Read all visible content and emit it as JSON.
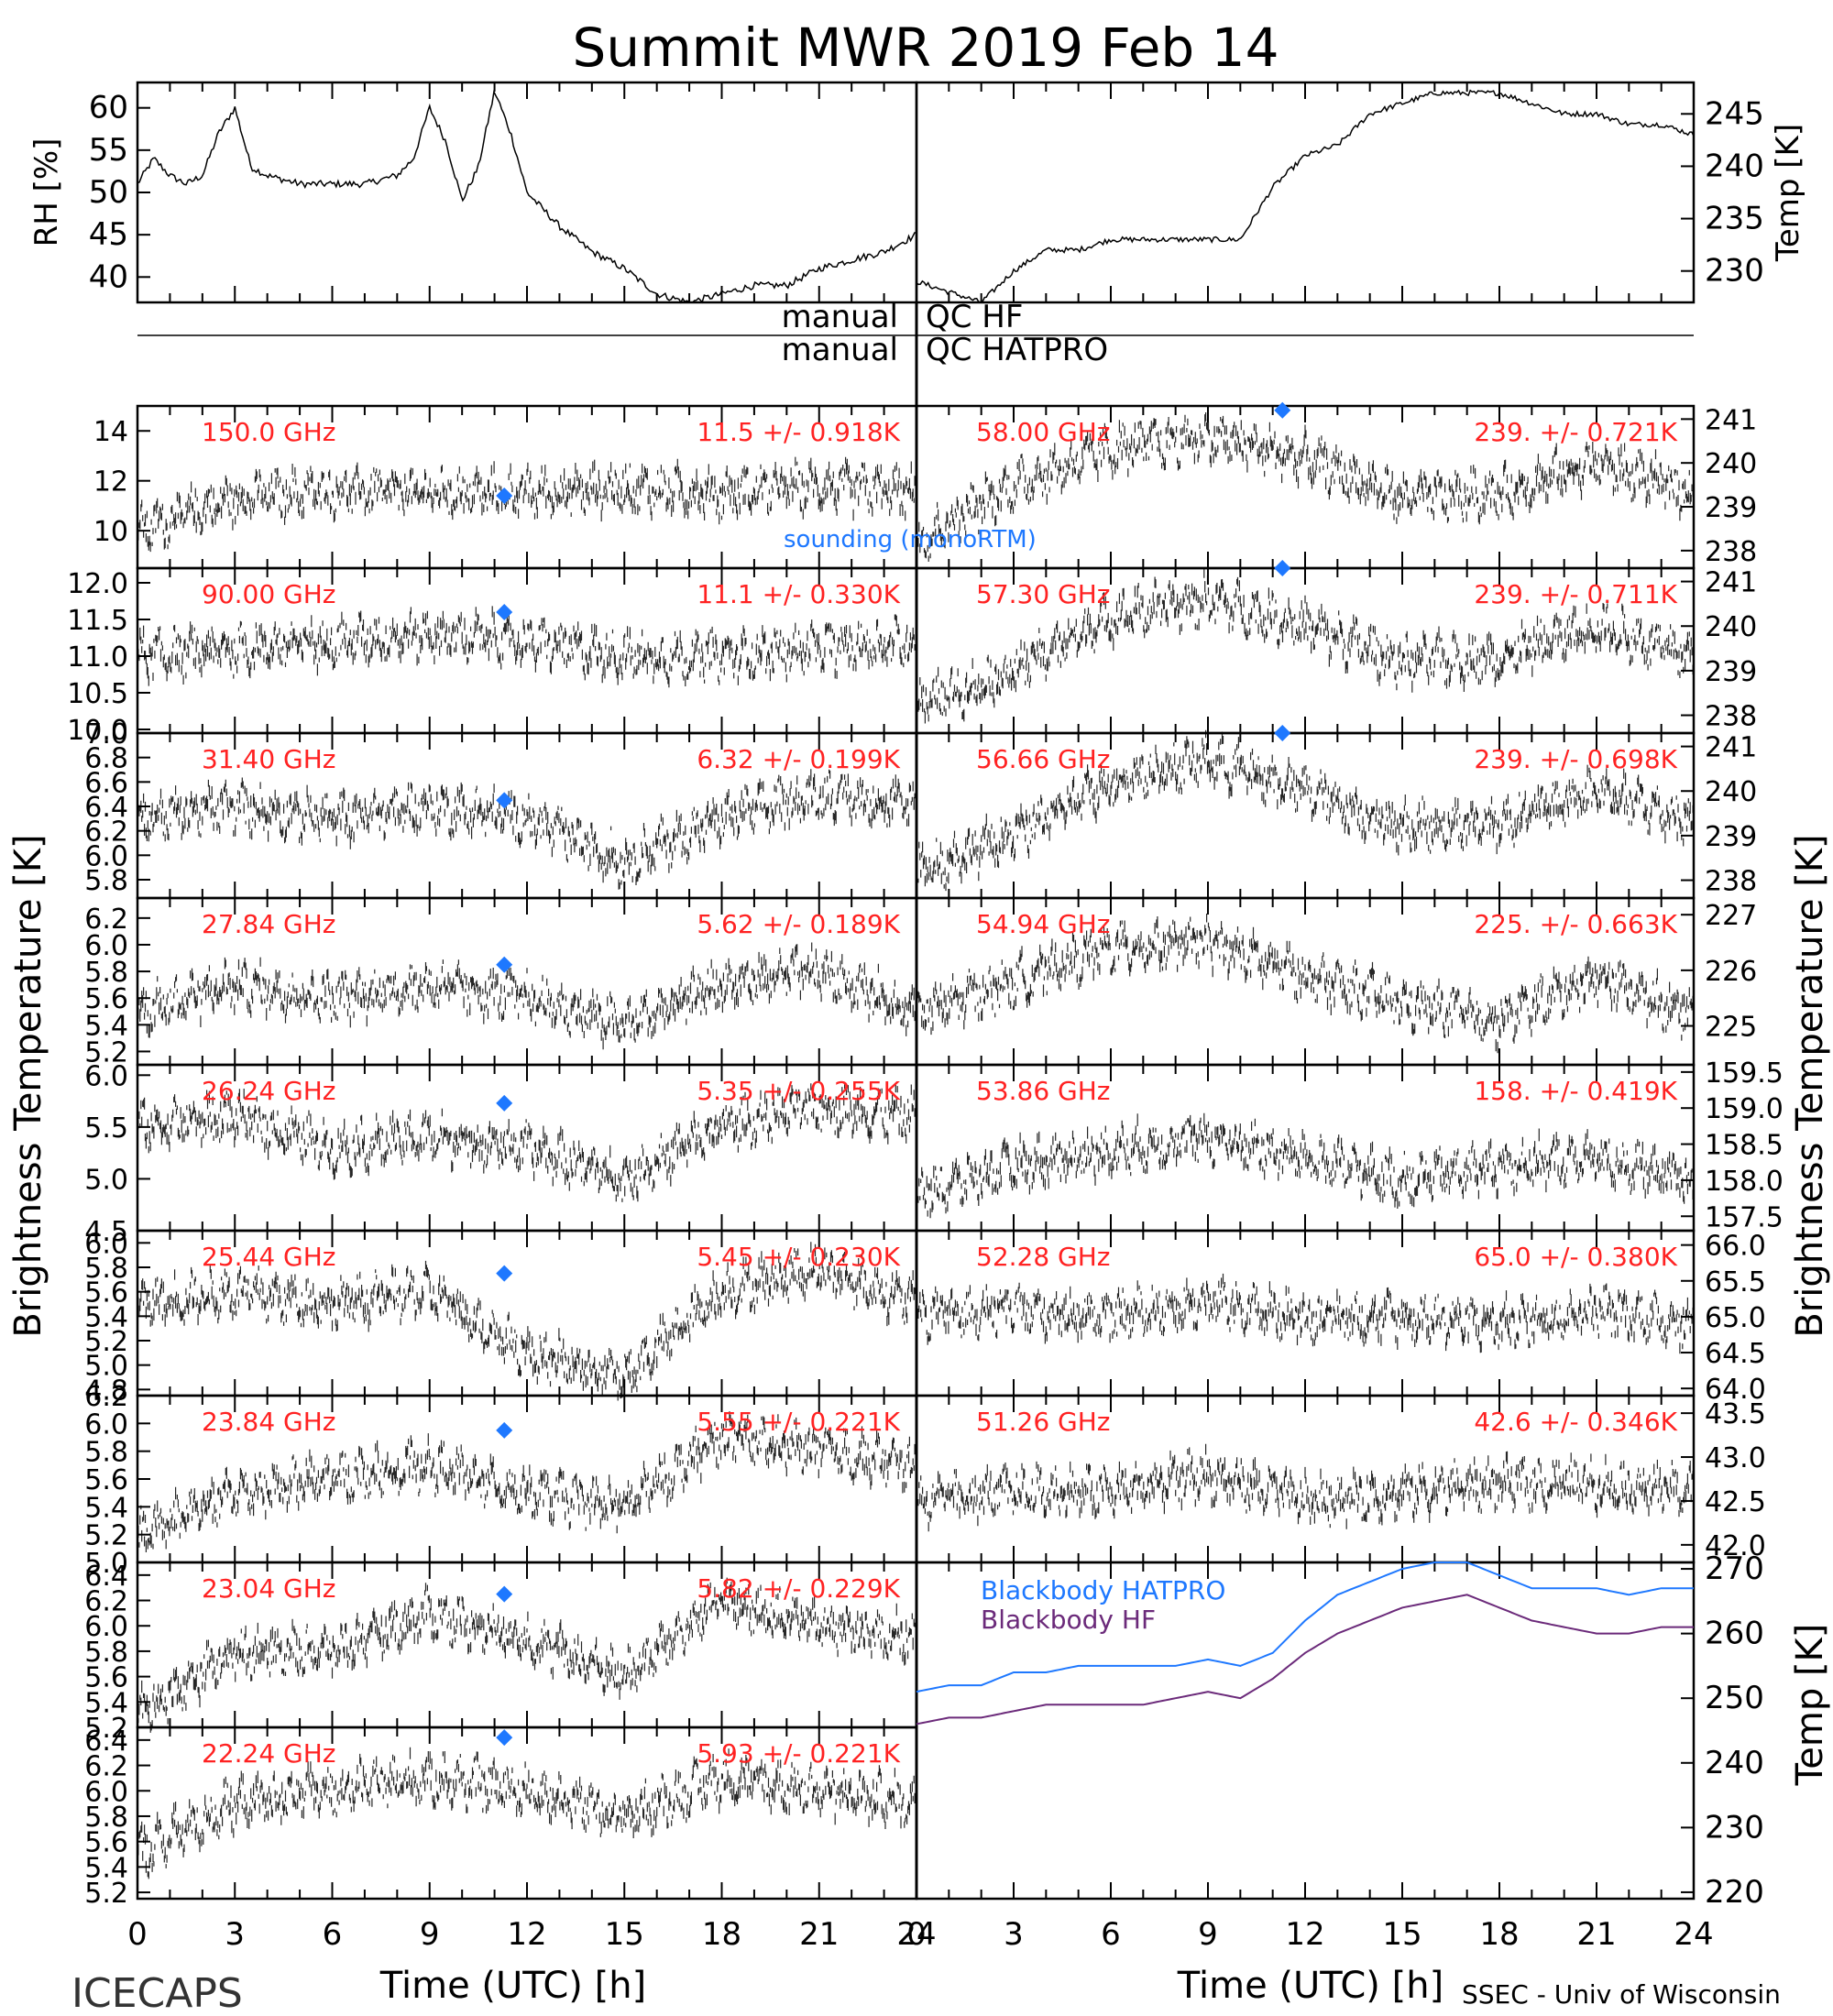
{
  "title": "Summit MWR 2019 Feb 14",
  "footer": {
    "left": "ICECAPS",
    "xlabel": "Time (UTC) [h]",
    "credit": "SSEC - Univ of Wisconsin"
  },
  "qc": {
    "hf": "manual QC HF",
    "hatpro": "manual QC HATPRO"
  },
  "sounding_label": "sounding (monoRTM)",
  "left_axis_title": "Brightness Temperature [K]",
  "right_axis_title": "Brightness Temperature [K]",
  "colors": {
    "data": "#000000",
    "freq_label": "#ff2222",
    "sounding": "#1e78ff",
    "bb_hatpro": "#1e78ff",
    "bb_hf": "#6b2a7a"
  },
  "chart_data": [
    {
      "id": "rh",
      "type": "line",
      "ylabel": "RH [%]",
      "ylim": [
        37,
        63
      ],
      "yticks": [
        "40",
        "45",
        "50",
        "55",
        "60"
      ],
      "xlim": [
        0,
        12
      ],
      "x": [
        0,
        0.5,
        1,
        1.5,
        2,
        2.5,
        3,
        3.5,
        4,
        5,
        6,
        7,
        8,
        8.5,
        9,
        9.5,
        10,
        10.5,
        11,
        11.5,
        12
      ],
      "values": [
        51,
        54,
        52,
        51,
        52,
        57,
        60,
        53,
        52,
        51,
        51,
        51,
        52,
        54,
        60,
        56,
        49,
        53,
        62,
        57,
        50
      ]
    },
    {
      "id": "rh_cont",
      "type": "line",
      "ylim": [
        37,
        63
      ],
      "xlim": [
        12,
        24
      ],
      "x": [
        12,
        13,
        14,
        15,
        16,
        17,
        18,
        19,
        20,
        21,
        22,
        23,
        24
      ],
      "values": [
        48,
        46,
        43,
        41,
        38,
        37,
        38,
        39,
        39,
        41,
        42,
        43,
        45
      ]
    },
    {
      "id": "temp",
      "type": "line",
      "ylabel": "Temp [K]",
      "ylim": [
        227,
        248
      ],
      "yticks": [
        "230",
        "235",
        "240",
        "245"
      ],
      "xlim": [
        0,
        24
      ],
      "x": [
        0,
        1,
        2,
        3,
        4,
        5,
        6,
        7,
        8,
        9,
        10,
        11,
        12,
        13,
        14,
        15,
        16,
        17,
        18,
        19,
        20,
        21,
        22,
        23,
        24
      ],
      "values": [
        229,
        228,
        227,
        230,
        232,
        232,
        233,
        233,
        233,
        233,
        233,
        238,
        241,
        242,
        245,
        246,
        247,
        247,
        247,
        246,
        245,
        245,
        244,
        244,
        243
      ]
    },
    {
      "id": "f150",
      "type": "scatter",
      "frequency": "150.0 GHz",
      "stat": "11.5 +/- 0.918K",
      "ylim": [
        8.5,
        15
      ],
      "yticks": [
        "10",
        "12",
        "14"
      ],
      "x": [
        0,
        3,
        6,
        9,
        12,
        15,
        18,
        21,
        24
      ],
      "values": [
        10.0,
        11.3,
        11.6,
        11.5,
        11.5,
        11.7,
        11.5,
        11.8,
        11.5
      ],
      "sounding": {
        "x": 11.3,
        "y": 11.4
      }
    },
    {
      "id": "f90",
      "type": "scatter",
      "frequency": "90.00 GHz",
      "stat": "11.1 +/- 0.330K",
      "ylim": [
        9.95,
        12.2
      ],
      "yticks": [
        "10.0",
        "10.5",
        "11.0",
        "11.5",
        "12.0"
      ],
      "x": [
        0,
        3,
        6,
        9,
        12,
        15,
        18,
        21,
        24
      ],
      "values": [
        11.0,
        11.1,
        11.2,
        11.3,
        11.2,
        11.0,
        11.0,
        11.1,
        11.2
      ],
      "sounding": {
        "x": 11.3,
        "y": 11.6
      }
    },
    {
      "id": "f31",
      "type": "scatter",
      "frequency": "31.40 GHz",
      "stat": "6.32 +/- 0.199K",
      "ylim": [
        5.65,
        7.0
      ],
      "yticks": [
        "5.8",
        "6.0",
        "6.2",
        "6.4",
        "6.6",
        "6.8",
        "7.0"
      ],
      "x": [
        0,
        3,
        6,
        9,
        12,
        15,
        18,
        21,
        24
      ],
      "values": [
        6.3,
        6.4,
        6.3,
        6.4,
        6.3,
        5.95,
        6.3,
        6.5,
        6.4
      ],
      "sounding": {
        "x": 11.3,
        "y": 6.45
      }
    },
    {
      "id": "f27",
      "type": "scatter",
      "frequency": "27.84 GHz",
      "stat": "5.62 +/- 0.189K",
      "ylim": [
        5.1,
        6.35
      ],
      "yticks": [
        "5.2",
        "5.4",
        "5.6",
        "5.8",
        "6.0",
        "6.2"
      ],
      "x": [
        0,
        3,
        6,
        9,
        12,
        15,
        18,
        21,
        24
      ],
      "values": [
        5.5,
        5.7,
        5.6,
        5.7,
        5.6,
        5.4,
        5.7,
        5.8,
        5.5
      ],
      "sounding": {
        "x": 11.3,
        "y": 5.85
      }
    },
    {
      "id": "f26",
      "type": "scatter",
      "frequency": "26.24 GHz",
      "stat": "5.35 +/- 0.255K",
      "ylim": [
        4.5,
        6.1
      ],
      "yticks": [
        "4.5",
        "5.0",
        "5.5",
        "6.0"
      ],
      "x": [
        0,
        3,
        6,
        9,
        12,
        15,
        18,
        21,
        24
      ],
      "values": [
        5.5,
        5.6,
        5.3,
        5.4,
        5.3,
        5.0,
        5.5,
        5.7,
        5.6
      ],
      "sounding": {
        "x": 11.3,
        "y": 5.73
      }
    },
    {
      "id": "f25",
      "type": "scatter",
      "frequency": "25.44 GHz",
      "stat": "5.45 +/- 0.230K",
      "ylim": [
        4.75,
        6.1
      ],
      "yticks": [
        "4.8",
        "5.0",
        "5.2",
        "5.4",
        "5.6",
        "5.8",
        "6.0"
      ],
      "x": [
        0,
        3,
        6,
        9,
        12,
        15,
        18,
        21,
        24
      ],
      "values": [
        5.5,
        5.6,
        5.5,
        5.6,
        5.1,
        4.9,
        5.6,
        5.8,
        5.5
      ],
      "sounding": {
        "x": 11.3,
        "y": 5.75
      }
    },
    {
      "id": "f23_84",
      "type": "scatter",
      "frequency": "23.84 GHz",
      "stat": "5.55 +/- 0.221K",
      "ylim": [
        5.0,
        6.2
      ],
      "yticks": [
        "5.0",
        "5.2",
        "5.4",
        "5.6",
        "5.8",
        "6.0",
        "6.2"
      ],
      "x": [
        0,
        3,
        6,
        9,
        12,
        15,
        18,
        21,
        24
      ],
      "values": [
        5.2,
        5.5,
        5.6,
        5.7,
        5.5,
        5.4,
        5.9,
        5.8,
        5.7
      ],
      "sounding": {
        "x": 11.3,
        "y": 5.95
      }
    },
    {
      "id": "f23_04",
      "type": "scatter",
      "frequency": "23.04 GHz",
      "stat": "5.82 +/- 0.229K",
      "ylim": [
        5.2,
        6.5
      ],
      "yticks": [
        "5.2",
        "5.4",
        "5.6",
        "5.8",
        "6.0",
        "6.2",
        "6.4"
      ],
      "x": [
        0,
        3,
        6,
        9,
        12,
        15,
        18,
        21,
        24
      ],
      "values": [
        5.3,
        5.8,
        5.8,
        6.1,
        5.9,
        5.6,
        6.2,
        6.0,
        5.9
      ],
      "sounding": {
        "x": 11.3,
        "y": 6.25
      }
    },
    {
      "id": "f22",
      "type": "scatter",
      "frequency": "22.24 GHz",
      "stat": "5.93 +/- 0.221K",
      "ylim": [
        5.15,
        6.5
      ],
      "yticks": [
        "5.2",
        "5.4",
        "5.6",
        "5.8",
        "6.0",
        "6.2",
        "6.4"
      ],
      "x": [
        0,
        3,
        6,
        9,
        12,
        15,
        18,
        21,
        24
      ],
      "values": [
        5.5,
        5.9,
        6.0,
        6.1,
        6.0,
        5.8,
        6.1,
        6.0,
        5.9
      ],
      "sounding": {
        "x": 11.3,
        "y": 6.42
      }
    },
    {
      "id": "f58",
      "type": "scatter",
      "frequency": "58.00 GHz",
      "stat": "239. +/- 0.721K",
      "ylim": [
        237.6,
        241.3
      ],
      "yticks": [
        "238",
        "239",
        "240",
        "241"
      ],
      "x": [
        0,
        3,
        6,
        9,
        12,
        15,
        18,
        21,
        24
      ],
      "values": [
        238.2,
        239.5,
        240.3,
        240.6,
        240.1,
        239.2,
        239.3,
        240.0,
        239.3
      ],
      "sounding": {
        "x": 11.3,
        "y": 241.2
      }
    },
    {
      "id": "f57",
      "type": "scatter",
      "frequency": "57.30 GHz",
      "stat": "239. +/- 0.711K",
      "ylim": [
        237.6,
        241.3
      ],
      "yticks": [
        "238",
        "239",
        "240",
        "241"
      ],
      "x": [
        0,
        3,
        6,
        9,
        12,
        15,
        18,
        21,
        24
      ],
      "values": [
        238.2,
        239.0,
        240.2,
        240.6,
        240.0,
        239.2,
        239.3,
        240.0,
        239.3
      ],
      "sounding": {
        "x": 11.3,
        "y": 241.3
      }
    },
    {
      "id": "f56",
      "type": "scatter",
      "frequency": "56.66 GHz",
      "stat": "239. +/- 0.698K",
      "ylim": [
        237.6,
        241.3
      ],
      "yticks": [
        "238",
        "239",
        "240",
        "241"
      ],
      "x": [
        0,
        3,
        6,
        9,
        12,
        15,
        18,
        21,
        24
      ],
      "values": [
        238.2,
        239.0,
        240.2,
        240.7,
        240.0,
        239.2,
        239.3,
        240.0,
        239.3
      ],
      "sounding": {
        "x": 11.3,
        "y": 241.3
      }
    },
    {
      "id": "f54",
      "type": "scatter",
      "frequency": "54.94 GHz",
      "stat": "225. +/- 0.663K",
      "ylim": [
        224.3,
        227.3
      ],
      "yticks": [
        "225",
        "226",
        "227"
      ],
      "x": [
        0,
        3,
        6,
        9,
        12,
        15,
        18,
        21,
        24
      ],
      "values": [
        225.2,
        225.8,
        226.4,
        226.5,
        225.9,
        225.4,
        225.1,
        225.9,
        225.2
      ]
    },
    {
      "id": "f53",
      "type": "scatter",
      "frequency": "53.86 GHz",
      "stat": "158. +/- 0.419K",
      "ylim": [
        157.3,
        159.6
      ],
      "yticks": [
        "157.5",
        "158.0",
        "158.5",
        "159.0",
        "159.5"
      ],
      "x": [
        0,
        3,
        6,
        9,
        12,
        15,
        18,
        21,
        24
      ],
      "values": [
        157.8,
        158.2,
        158.4,
        158.6,
        158.3,
        158.0,
        158.2,
        158.3,
        158.0
      ]
    },
    {
      "id": "f52",
      "type": "scatter",
      "frequency": "52.28 GHz",
      "stat": "65.0 +/- 0.380K",
      "ylim": [
        63.9,
        66.2
      ],
      "yticks": [
        "64.0",
        "64.5",
        "65.0",
        "65.5",
        "66.0",
        "66.5"
      ],
      "x": [
        0,
        3,
        6,
        9,
        12,
        15,
        18,
        21,
        24
      ],
      "values": [
        65.0,
        65.1,
        65.0,
        65.2,
        65.0,
        65.0,
        64.9,
        65.1,
        64.9
      ]
    },
    {
      "id": "f51",
      "type": "scatter",
      "frequency": "51.26 GHz",
      "stat": "42.6 +/- 0.346K",
      "ylim": [
        41.8,
        43.7
      ],
      "yticks": [
        "42.0",
        "42.5",
        "43.0",
        "43.5"
      ],
      "x": [
        0,
        3,
        6,
        9,
        12,
        15,
        18,
        21,
        24
      ],
      "values": [
        42.5,
        42.6,
        42.6,
        42.8,
        42.5,
        42.6,
        42.7,
        42.7,
        42.6
      ]
    },
    {
      "id": "blackbody",
      "type": "line",
      "ylabel": "Temp [K]",
      "ylim": [
        219,
        271
      ],
      "yticks": [
        "220",
        "230",
        "240",
        "250",
        "260",
        "270"
      ],
      "series": [
        {
          "name": "Blackbody HATPRO",
          "x": [
            0,
            1,
            2,
            3,
            4,
            5,
            6,
            7,
            8,
            9,
            10,
            11,
            12,
            13,
            14,
            15,
            16,
            17,
            18,
            19,
            20,
            21,
            22,
            23,
            24
          ],
          "values": [
            251,
            252,
            252,
            254,
            254,
            255,
            255,
            255,
            255,
            256,
            255,
            257,
            262,
            266,
            268,
            270,
            271,
            271,
            269,
            267,
            267,
            267,
            266,
            267,
            267
          ]
        },
        {
          "name": "Blackbody HF",
          "x": [
            0,
            1,
            2,
            3,
            4,
            5,
            6,
            7,
            8,
            9,
            10,
            11,
            12,
            13,
            14,
            15,
            16,
            17,
            18,
            19,
            20,
            21,
            22,
            23,
            24
          ],
          "values": [
            246,
            247,
            247,
            248,
            249,
            249,
            249,
            249,
            250,
            251,
            250,
            253,
            257,
            260,
            262,
            264,
            265,
            266,
            264,
            262,
            261,
            260,
            260,
            261,
            261
          ]
        }
      ]
    }
  ],
  "xticks": [
    "0",
    "3",
    "6",
    "9",
    "12",
    "15",
    "18",
    "21",
    "24"
  ]
}
